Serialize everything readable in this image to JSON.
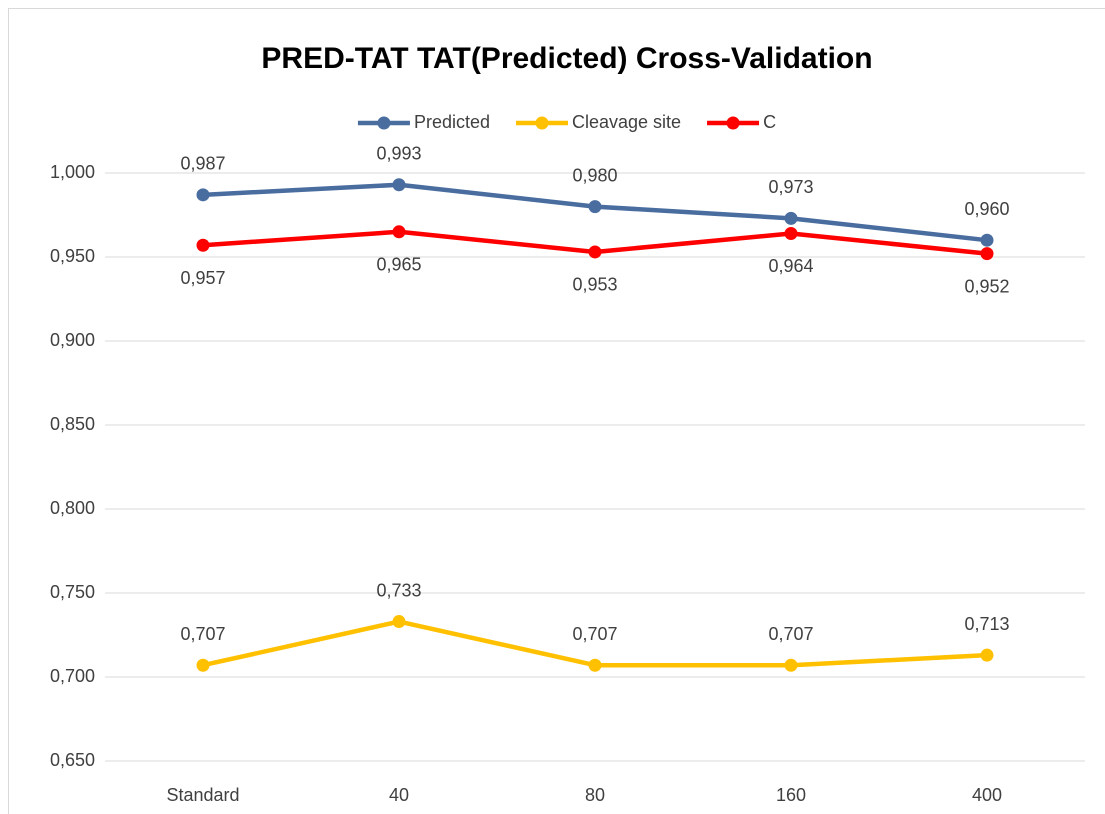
{
  "chart_data": {
    "type": "line",
    "title": "PRED-TAT TAT(Predicted) Cross-Validation",
    "categories": [
      "Standard",
      "40",
      "80",
      "160",
      "400"
    ],
    "series": [
      {
        "name": "Predicted",
        "color": "#4a6da0",
        "values": [
          0.987,
          0.993,
          0.98,
          0.973,
          0.96
        ],
        "value_labels": [
          "0,987",
          "0,993",
          "0,980",
          "0,973",
          "0,960"
        ]
      },
      {
        "name": "Cleavage site",
        "color": "#ffc000",
        "values": [
          0.707,
          0.733,
          0.707,
          0.707,
          0.713
        ],
        "value_labels": [
          "0,707",
          "0,733",
          "0,707",
          "0,707",
          "0,713"
        ]
      },
      {
        "name": "C",
        "color": "#ff0000",
        "values": [
          0.957,
          0.965,
          0.953,
          0.964,
          0.952
        ],
        "value_labels": [
          "0,957",
          "0,965",
          "0,953",
          "0,964",
          "0,952"
        ]
      }
    ],
    "ylim": [
      0.65,
      1.0
    ],
    "yticks": [
      {
        "value": 0.65,
        "label": "0,650"
      },
      {
        "value": 0.7,
        "label": "0,700"
      },
      {
        "value": 0.75,
        "label": "0,750"
      },
      {
        "value": 0.8,
        "label": "0,800"
      },
      {
        "value": 0.85,
        "label": "0,850"
      },
      {
        "value": 0.9,
        "label": "0,900"
      },
      {
        "value": 0.95,
        "label": "0,950"
      },
      {
        "value": 1.0,
        "label": "1,000"
      }
    ],
    "grid": true,
    "legend": "top"
  }
}
